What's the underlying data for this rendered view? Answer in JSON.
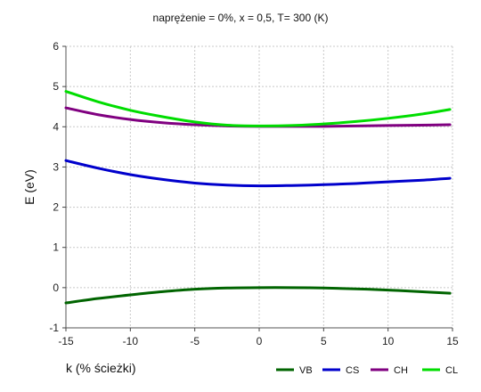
{
  "chart_data": {
    "type": "line",
    "title": "naprężenie = 0%, x = 0,5, T= 300 (K)",
    "xlabel": "k (% ścieżki)",
    "ylabel": "E (eV)",
    "xlim": [
      -15,
      15
    ],
    "ylim": [
      -1,
      6
    ],
    "xticks": [
      -15,
      -10,
      -5,
      0,
      5,
      10,
      15
    ],
    "yticks": [
      -1,
      0,
      1,
      2,
      3,
      4,
      5,
      6
    ],
    "grid": true,
    "legend_position": "bottom-right",
    "x": [
      -15,
      -12.5,
      -10,
      -7.5,
      -5,
      -2.5,
      0,
      2.5,
      5,
      7.5,
      10,
      12.5,
      14.8
    ],
    "series": [
      {
        "name": "VB",
        "color": "#006400",
        "values": [
          -0.38,
          -0.27,
          -0.18,
          -0.1,
          -0.04,
          -0.01,
          0.0,
          0.0,
          -0.01,
          -0.03,
          -0.06,
          -0.1,
          -0.14
        ]
      },
      {
        "name": "CS",
        "color": "#0000cc",
        "values": [
          3.16,
          2.97,
          2.81,
          2.69,
          2.6,
          2.55,
          2.53,
          2.54,
          2.56,
          2.59,
          2.63,
          2.67,
          2.72
        ]
      },
      {
        "name": "CH",
        "color": "#800080",
        "values": [
          4.47,
          4.3,
          4.18,
          4.1,
          4.05,
          4.02,
          4.01,
          4.01,
          4.01,
          4.02,
          4.03,
          4.04,
          4.05
        ]
      },
      {
        "name": "CL",
        "color": "#00dd00",
        "values": [
          4.88,
          4.62,
          4.41,
          4.25,
          4.12,
          4.04,
          4.02,
          4.03,
          4.07,
          4.13,
          4.21,
          4.31,
          4.43
        ]
      }
    ]
  }
}
